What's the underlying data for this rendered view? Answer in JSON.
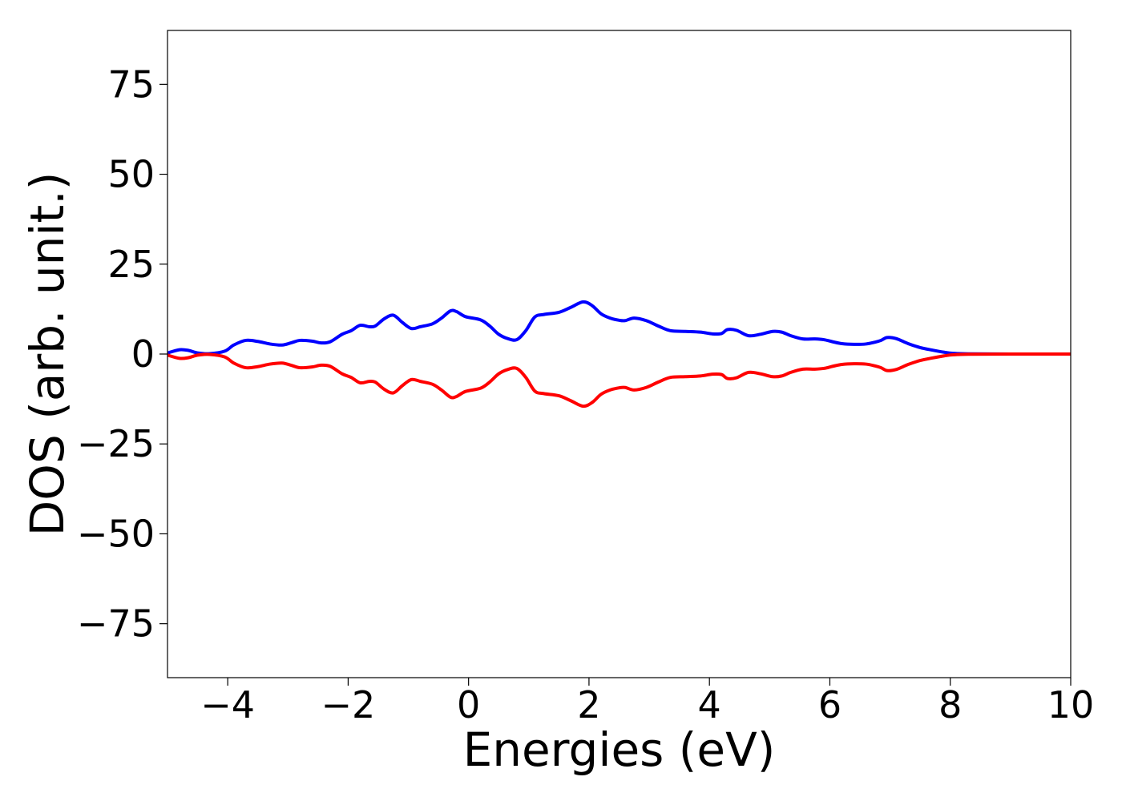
{
  "chart_data": {
    "type": "line",
    "title": "",
    "xlabel": "Energies (eV)",
    "ylabel": "DOS (arb. unit.)",
    "xlim": [
      -5,
      10
    ],
    "ylim": [
      -90,
      90
    ],
    "x_ticks": [
      -4,
      -2,
      0,
      2,
      4,
      6,
      8,
      10
    ],
    "x_tick_labels": [
      "−4",
      "−2",
      "0",
      "2",
      "4",
      "6",
      "8",
      "10"
    ],
    "y_ticks": [
      75,
      50,
      25,
      0,
      -25,
      -50,
      -75
    ],
    "y_tick_labels": [
      "75",
      "50",
      "25",
      "0",
      "−25",
      "−50",
      "−75"
    ],
    "grid": false,
    "legend": "none",
    "series": [
      {
        "color": "#0000ff",
        "x": [
          -5.0,
          -4.8,
          -4.65,
          -4.5,
          -4.3,
          -4.05,
          -3.9,
          -3.7,
          -3.5,
          -3.3,
          -3.1,
          -2.95,
          -2.8,
          -2.6,
          -2.45,
          -2.3,
          -2.1,
          -1.95,
          -1.8,
          -1.65,
          -1.55,
          -1.4,
          -1.25,
          -1.1,
          -0.95,
          -0.8,
          -0.6,
          -0.45,
          -0.3,
          -0.2,
          -0.05,
          0.2,
          0.35,
          0.5,
          0.65,
          0.8,
          0.95,
          1.1,
          1.25,
          1.5,
          1.7,
          1.9,
          2.05,
          2.2,
          2.35,
          2.5,
          2.6,
          2.75,
          2.95,
          3.15,
          3.35,
          3.6,
          3.85,
          4.05,
          4.2,
          4.3,
          4.45,
          4.65,
          4.85,
          5.05,
          5.2,
          5.35,
          5.55,
          5.75,
          5.9,
          6.05,
          6.2,
          6.4,
          6.6,
          6.75,
          6.85,
          6.95,
          7.1,
          7.3,
          7.5,
          7.7,
          7.9,
          8.05,
          8.3,
          9.0,
          10.0
        ],
        "y": [
          0.3,
          1.2,
          1.0,
          0.3,
          0.1,
          0.8,
          2.5,
          3.8,
          3.5,
          2.8,
          2.5,
          3.1,
          3.8,
          3.6,
          3.1,
          3.4,
          5.5,
          6.5,
          8.0,
          7.6,
          7.8,
          9.8,
          10.8,
          8.8,
          7.1,
          7.6,
          8.4,
          10.0,
          12.0,
          11.8,
          10.4,
          9.5,
          7.8,
          5.5,
          4.3,
          4.0,
          6.5,
          10.3,
          11.0,
          11.6,
          13.0,
          14.5,
          13.5,
          11.2,
          10.0,
          9.4,
          9.3,
          10.0,
          9.3,
          7.8,
          6.5,
          6.3,
          6.1,
          5.6,
          5.7,
          6.8,
          6.6,
          5.1,
          5.5,
          6.3,
          6.1,
          5.1,
          4.2,
          4.2,
          4.0,
          3.4,
          2.9,
          2.7,
          2.8,
          3.3,
          3.8,
          4.6,
          4.3,
          2.9,
          1.8,
          1.1,
          0.5,
          0.2,
          0.05,
          0.0,
          0.0
        ]
      },
      {
        "color": "#ff0000",
        "x": [
          -5.0,
          -4.8,
          -4.65,
          -4.5,
          -4.3,
          -4.05,
          -3.9,
          -3.7,
          -3.5,
          -3.3,
          -3.1,
          -2.95,
          -2.8,
          -2.6,
          -2.45,
          -2.3,
          -2.1,
          -1.95,
          -1.8,
          -1.65,
          -1.55,
          -1.4,
          -1.25,
          -1.1,
          -0.95,
          -0.8,
          -0.6,
          -0.45,
          -0.3,
          -0.2,
          -0.05,
          0.2,
          0.35,
          0.5,
          0.65,
          0.8,
          0.95,
          1.1,
          1.25,
          1.5,
          1.7,
          1.9,
          2.05,
          2.2,
          2.35,
          2.5,
          2.6,
          2.75,
          2.95,
          3.15,
          3.35,
          3.6,
          3.85,
          4.05,
          4.2,
          4.3,
          4.45,
          4.65,
          4.85,
          5.05,
          5.2,
          5.35,
          5.55,
          5.75,
          5.9,
          6.05,
          6.2,
          6.4,
          6.6,
          6.75,
          6.85,
          6.95,
          7.1,
          7.3,
          7.5,
          7.7,
          7.9,
          8.05,
          8.3,
          9.0,
          10.0
        ],
        "y": [
          -0.3,
          -1.2,
          -1.0,
          -0.3,
          -0.1,
          -0.8,
          -2.5,
          -3.8,
          -3.5,
          -2.8,
          -2.5,
          -3.1,
          -3.8,
          -3.6,
          -3.1,
          -3.4,
          -5.5,
          -6.5,
          -8.0,
          -7.6,
          -7.8,
          -9.8,
          -10.8,
          -8.8,
          -7.1,
          -7.6,
          -8.4,
          -10.0,
          -12.0,
          -11.8,
          -10.4,
          -9.5,
          -7.8,
          -5.5,
          -4.3,
          -4.0,
          -6.5,
          -10.3,
          -11.0,
          -11.6,
          -13.0,
          -14.5,
          -13.5,
          -11.2,
          -10.0,
          -9.4,
          -9.3,
          -10.0,
          -9.3,
          -7.8,
          -6.5,
          -6.3,
          -6.1,
          -5.6,
          -5.7,
          -6.8,
          -6.6,
          -5.1,
          -5.5,
          -6.3,
          -6.1,
          -5.1,
          -4.2,
          -4.2,
          -4.0,
          -3.4,
          -2.9,
          -2.7,
          -2.8,
          -3.3,
          -3.8,
          -4.6,
          -4.3,
          -2.9,
          -1.8,
          -1.1,
          -0.5,
          -0.2,
          -0.05,
          0.0,
          0.0
        ]
      }
    ]
  }
}
